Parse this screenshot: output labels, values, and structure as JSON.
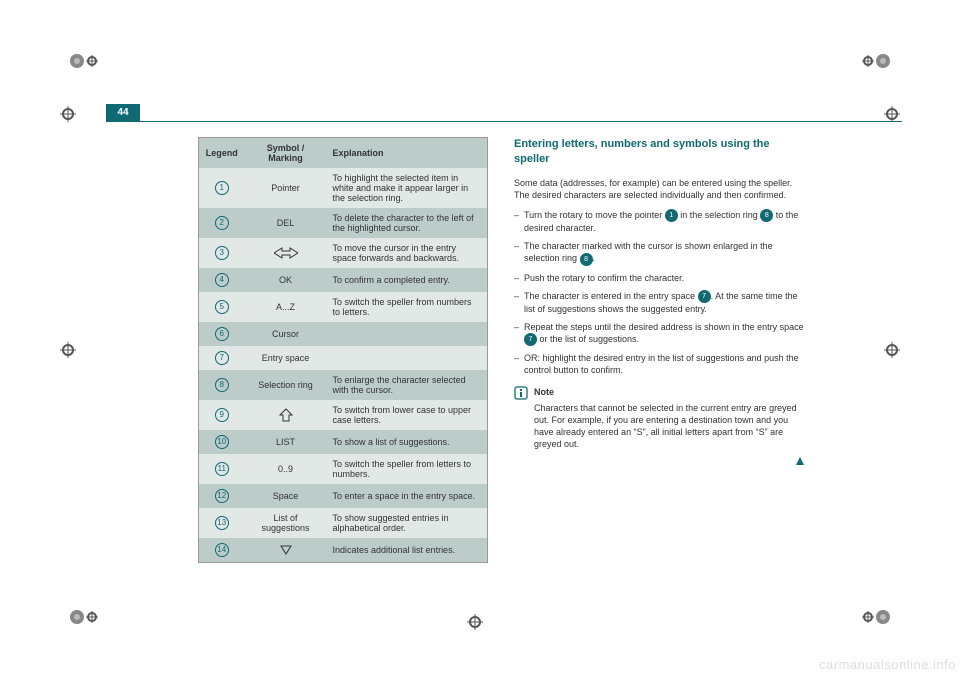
{
  "page_number": "44",
  "colors": {
    "teal": "#0f6a73",
    "row_dark": "#bcccc9",
    "row_light": "#e1e8e6",
    "text": "#333333",
    "watermark": "#dddddd"
  },
  "table": {
    "headers": {
      "legend": "Legend",
      "symbol": "Symbol / Marking",
      "explanation": "Explanation"
    },
    "rows": [
      {
        "num": "1",
        "symbol_text": "Pointer",
        "icon": null,
        "explanation": "To highlight the selected item in white and make it appear larger in the selection ring."
      },
      {
        "num": "2",
        "symbol_text": "DEL",
        "icon": null,
        "explanation": "To delete the character to the left of the highlighted cursor."
      },
      {
        "num": "3",
        "symbol_text": "",
        "icon": "lr-arrows",
        "explanation": "To move the cursor in the entry space forwards and backwards."
      },
      {
        "num": "4",
        "symbol_text": "OK",
        "icon": null,
        "explanation": "To confirm a completed entry."
      },
      {
        "num": "5",
        "symbol_text": "A...Z",
        "icon": null,
        "explanation": "To switch the speller from numbers to letters."
      },
      {
        "num": "6",
        "symbol_text": "Cursor",
        "icon": null,
        "explanation": ""
      },
      {
        "num": "7",
        "symbol_text": "Entry space",
        "icon": null,
        "explanation": ""
      },
      {
        "num": "8",
        "symbol_text": "Selection ring",
        "icon": null,
        "explanation": "To enlarge the character selected with the cursor."
      },
      {
        "num": "9",
        "symbol_text": "",
        "icon": "up-arrow",
        "explanation": "To switch from lower case to upper case letters."
      },
      {
        "num": "10",
        "symbol_text": "LIST",
        "icon": null,
        "explanation": "To show a list of suggestions."
      },
      {
        "num": "11",
        "symbol_text": "0..9",
        "icon": null,
        "explanation": "To switch the speller from letters to numbers."
      },
      {
        "num": "12",
        "symbol_text": "Space",
        "icon": null,
        "explanation": "To enter a space in the entry space."
      },
      {
        "num": "13",
        "symbol_text": "List of suggestions",
        "icon": null,
        "explanation": "To show suggested entries in alphabetical order."
      },
      {
        "num": "14",
        "symbol_text": "",
        "icon": "down-tri",
        "explanation": "Indicates additional list entries."
      }
    ]
  },
  "right": {
    "heading": "Entering letters, numbers and symbols using the speller",
    "intro": "Some data (addresses, for example) can be entered using the speller. The desired characters are selected individually and then confirmed.",
    "steps": [
      {
        "pre": "Turn the rotary to move the pointer ",
        "ref": "1",
        "mid": " in the selection ring ",
        "ref2": "8",
        "post": " to the desired character."
      },
      {
        "pre": "The character marked with the cursor is shown enlarged in the selection ring ",
        "ref": "8",
        "post": "."
      },
      {
        "pre": "Push the rotary to confirm the character.",
        "post": ""
      },
      {
        "pre": "The character is entered in the entry space ",
        "ref": "7",
        "post": ". At the same time the list of suggestions shows the suggested entry."
      },
      {
        "pre": "Repeat the steps until the desired address is shown in the entry space ",
        "ref": "7",
        "post": " or the list of suggestions."
      },
      {
        "pre": "OR: highlight the desired entry in the list of suggestions and push the control button to confirm.",
        "post": ""
      }
    ],
    "note_label": "Note",
    "notes": [
      "Characters that cannot be selected in the current entry are greyed out. For example, if you are entering a destination town and you have already entered an “S”, all initial letters apart from “S” are greyed out."
    ]
  },
  "watermark": "carmanualsonline.info"
}
